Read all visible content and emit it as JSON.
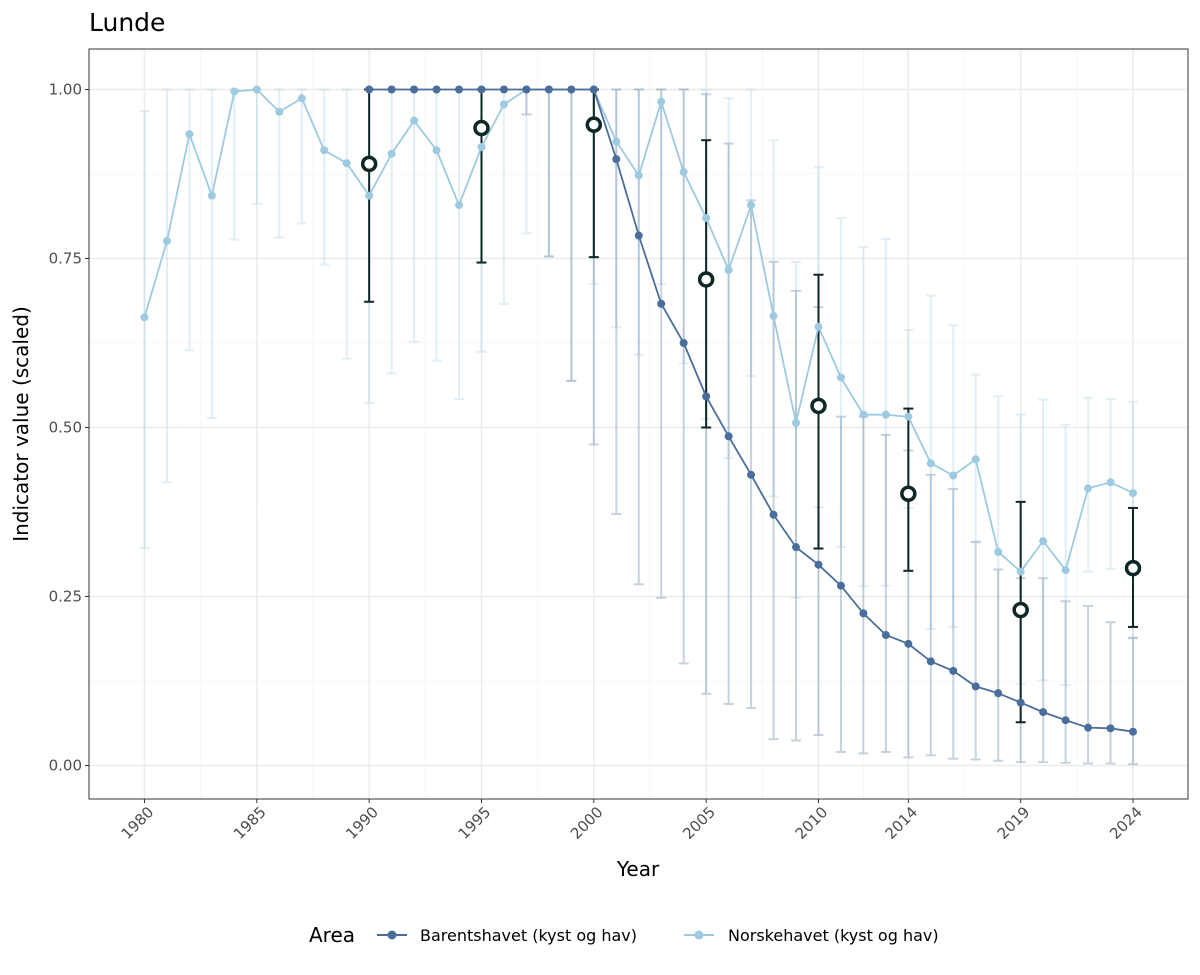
{
  "chart_data": {
    "type": "line",
    "title": "Lunde",
    "xlabel": "Year",
    "ylabel": "Indicator value (scaled)",
    "xlim": [
      1980,
      2024
    ],
    "ylim": [
      0,
      1
    ],
    "x_ticks": [
      1980,
      1985,
      1990,
      1995,
      2000,
      2005,
      2010,
      2014,
      2019,
      2024
    ],
    "y_ticks": [
      0.0,
      0.25,
      0.5,
      0.75,
      1.0
    ],
    "y_tick_labels": [
      "0.00",
      "0.25",
      "0.50",
      "0.75",
      "1.00"
    ],
    "grid": true,
    "legend": {
      "title": "Area",
      "position": "bottom"
    },
    "series": [
      {
        "name": "Barentshavet (kyst og hav)",
        "color": "#4a6e9b",
        "x": [
          1990,
          1991,
          1992,
          1993,
          1994,
          1995,
          1996,
          1997,
          1998,
          1999,
          2000,
          2001,
          2002,
          2003,
          2004,
          2005,
          2006,
          2007,
          2008,
          2009,
          2010,
          2011,
          2012,
          2013,
          2014,
          2015,
          2016,
          2017,
          2018,
          2019,
          2020,
          2021,
          2022,
          2023,
          2024
        ],
        "y": [
          1.0,
          1.0,
          1.0,
          1.0,
          1.0,
          1.0,
          1.0,
          1.0,
          1.0,
          1.0,
          1.0,
          0.897,
          0.784,
          0.683,
          0.625,
          0.546,
          0.487,
          0.43,
          0.371,
          0.323,
          0.297,
          0.266,
          0.225,
          0.193,
          0.18,
          0.154,
          0.14,
          0.117,
          0.107,
          0.093,
          0.079,
          0.067,
          0.056,
          0.055,
          0.05
        ],
        "lower": [
          null,
          null,
          null,
          null,
          null,
          null,
          null,
          0.963,
          0.753,
          0.569,
          0.475,
          0.372,
          0.268,
          0.248,
          0.151,
          0.106,
          0.091,
          0.085,
          0.039,
          0.037,
          0.045,
          0.02,
          0.018,
          0.02,
          0.012,
          0.015,
          0.01,
          0.009,
          0.007,
          0.005,
          0.005,
          0.004,
          0.003,
          0.003,
          0.002
        ],
        "upper": [
          null,
          null,
          null,
          null,
          null,
          null,
          null,
          1.0,
          1.0,
          1.0,
          1.0,
          1.0,
          1.0,
          1.0,
          1.0,
          0.993,
          0.92,
          0.836,
          0.745,
          0.702,
          0.678,
          0.516,
          0.516,
          0.489,
          0.466,
          0.43,
          0.409,
          0.331,
          0.29,
          0.277,
          0.277,
          0.243,
          0.236,
          0.212,
          0.189
        ]
      },
      {
        "name": "Norskehavet (kyst og hav)",
        "color": "#9ecae1",
        "x": [
          1980,
          1981,
          1982,
          1983,
          1984,
          1985,
          1986,
          1987,
          1988,
          1989,
          1990,
          1991,
          1992,
          1993,
          1994,
          1995,
          1996,
          1997,
          1998,
          1999,
          2000,
          2001,
          2002,
          2003,
          2004,
          2005,
          2006,
          2007,
          2008,
          2009,
          2010,
          2011,
          2012,
          2013,
          2014,
          2015,
          2016,
          2017,
          2018,
          2019,
          2020,
          2021,
          2022,
          2023,
          2024
        ],
        "y": [
          0.663,
          0.776,
          0.934,
          0.843,
          0.997,
          1.0,
          0.967,
          0.987,
          0.91,
          0.891,
          0.843,
          0.905,
          0.954,
          0.91,
          0.829,
          0.915,
          0.978,
          1.0,
          1.0,
          1.0,
          1.0,
          0.923,
          0.873,
          0.982,
          0.878,
          0.81,
          0.733,
          0.829,
          0.665,
          0.507,
          0.649,
          0.574,
          0.519,
          0.519,
          0.516,
          0.447,
          0.429,
          0.453,
          0.316,
          0.287,
          0.332,
          0.289,
          0.41,
          0.419,
          0.403
        ],
        "lower": [
          0.322,
          0.419,
          0.614,
          0.514,
          0.778,
          0.831,
          0.781,
          0.802,
          0.741,
          0.602,
          0.536,
          0.58,
          0.627,
          0.599,
          0.542,
          0.612,
          0.683,
          0.787,
          0.753,
          0.569,
          0.712,
          0.648,
          0.608,
          0.712,
          0.595,
          0.513,
          0.455,
          0.576,
          0.398,
          0.248,
          0.382,
          0.323,
          0.265,
          0.266,
          0.381,
          0.202,
          0.205,
          0.33,
          0.102,
          0.121,
          0.126,
          0.119,
          0.287,
          0.291,
          0.188
        ],
        "upper": [
          0.968,
          1.0,
          1.0,
          1.0,
          1.0,
          1.0,
          1.0,
          1.0,
          1.0,
          1.0,
          1.0,
          1.0,
          1.0,
          1.0,
          1.0,
          1.0,
          1.0,
          1.0,
          1.0,
          1.0,
          1.0,
          1.0,
          1.0,
          1.0,
          1.0,
          1.0,
          0.987,
          1.0,
          0.925,
          0.745,
          0.885,
          0.81,
          0.767,
          0.779,
          0.644,
          0.695,
          0.651,
          0.578,
          0.546,
          0.519,
          0.541,
          0.504,
          0.544,
          0.542,
          0.538
        ]
      },
      {
        "name": "",
        "color": "#0d2626",
        "style": "open-circle-with-errorbar",
        "x": [
          1990,
          1995,
          2000,
          2005,
          2010,
          2014,
          2019,
          2024
        ],
        "y": [
          0.89,
          0.943,
          0.948,
          0.719,
          0.532,
          0.402,
          0.23,
          0.292
        ],
        "lower": [
          0.686,
          0.744,
          0.752,
          0.5,
          0.321,
          0.288,
          0.064,
          0.205
        ],
        "upper": [
          1.0,
          1.0,
          1.0,
          0.925,
          0.726,
          0.528,
          0.39,
          0.381
        ]
      }
    ]
  }
}
